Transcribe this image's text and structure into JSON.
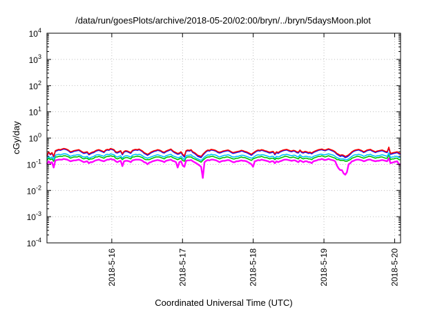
{
  "chart_data": {
    "type": "line",
    "title": "/data/run/goesPlots/archive/2018-05-20/02:00/bryn/../bryn/5daysMoon.plot",
    "xlabel": "Coordinated Universal Time (UTC)",
    "ylabel": "cGy/day",
    "yscale": "log",
    "ylim": [
      0.0001,
      10000
    ],
    "y_ticks": [
      {
        "base": "10",
        "exp": "-4"
      },
      {
        "base": "10",
        "exp": "-3"
      },
      {
        "base": "10",
        "exp": "-2"
      },
      {
        "base": "10",
        "exp": "-1"
      },
      {
        "base": "10",
        "exp": "0"
      },
      {
        "base": "10",
        "exp": "1"
      },
      {
        "base": "10",
        "exp": "2"
      },
      {
        "base": "10",
        "exp": "3"
      },
      {
        "base": "10",
        "exp": "4"
      }
    ],
    "xlim": [
      "2018-05-15T02:00",
      "2018-05-20T02:00"
    ],
    "x_ticks": [
      "2018-5-16",
      "2018-5-17",
      "2018-5-18",
      "2018-5-19",
      "2018-5-20"
    ],
    "grid": true,
    "legend": "none",
    "series": [
      {
        "color": "#ff0000",
        "values": [
          0.21,
          0.3,
          0.24,
          0.28,
          0.2,
          0.33,
          0.35,
          0.37,
          0.36,
          0.38,
          0.4,
          0.39,
          0.37,
          0.34,
          0.3,
          0.31,
          0.33,
          0.34,
          0.35,
          0.36,
          0.33,
          0.3,
          0.28,
          0.29,
          0.3,
          0.25,
          0.27,
          0.29,
          0.3,
          0.33,
          0.35,
          0.36,
          0.34,
          0.32,
          0.3,
          0.35,
          0.37,
          0.36,
          0.4,
          0.38,
          0.36,
          0.3,
          0.29,
          0.31,
          0.33,
          0.25,
          0.31,
          0.33,
          0.32,
          0.3,
          0.28,
          0.34,
          0.36,
          0.37,
          0.36,
          0.38,
          0.35,
          0.32,
          0.28,
          0.26,
          0.24,
          0.26,
          0.29,
          0.31,
          0.33,
          0.34,
          0.36,
          0.35,
          0.33,
          0.3,
          0.29,
          0.32,
          0.34,
          0.36,
          0.38,
          0.33,
          0.3,
          0.28,
          0.26,
          0.27,
          0.3,
          0.24,
          0.21,
          0.33,
          0.35,
          0.34,
          0.36,
          0.3,
          0.28,
          0.25,
          0.22,
          0.21,
          0.2,
          0.24,
          0.28,
          0.32,
          0.35,
          0.34,
          0.37,
          0.36,
          0.35,
          0.33,
          0.3,
          0.29,
          0.3,
          0.32,
          0.33,
          0.34,
          0.35,
          0.33,
          0.3,
          0.28,
          0.29,
          0.3,
          0.31,
          0.32,
          0.34,
          0.33,
          0.31,
          0.3,
          0.28,
          0.26,
          0.24,
          0.27,
          0.3,
          0.33,
          0.35,
          0.34,
          0.36,
          0.35,
          0.33,
          0.32,
          0.3,
          0.29,
          0.3,
          0.31,
          0.25,
          0.3,
          0.28,
          0.31,
          0.33,
          0.35,
          0.36,
          0.37,
          0.35,
          0.33,
          0.32,
          0.34,
          0.33,
          0.3,
          0.29,
          0.35,
          0.3,
          0.29,
          0.31,
          0.3,
          0.28,
          0.29,
          0.27,
          0.3,
          0.32,
          0.34,
          0.36,
          0.37,
          0.38,
          0.36,
          0.35,
          0.37,
          0.39,
          0.37,
          0.35,
          0.33,
          0.3,
          0.26,
          0.24,
          0.22,
          0.23,
          0.22,
          0.2,
          0.21,
          0.23,
          0.26,
          0.3,
          0.33,
          0.35,
          0.36,
          0.37,
          0.35,
          0.33,
          0.3,
          0.32,
          0.35,
          0.36,
          0.37,
          0.34,
          0.32,
          0.3,
          0.32,
          0.33,
          0.34,
          0.35,
          0.33,
          0.31,
          0.3,
          0.45,
          0.26,
          0.27,
          0.28,
          0.29,
          0.3,
          0.27,
          0.26
        ]
      },
      {
        "color": "#0000ff",
        "values": [
          0.2,
          0.28,
          0.23,
          0.26,
          0.19,
          0.31,
          0.33,
          0.35,
          0.34,
          0.36,
          0.38,
          0.37,
          0.35,
          0.32,
          0.28,
          0.29,
          0.31,
          0.32,
          0.33,
          0.34,
          0.31,
          0.28,
          0.26,
          0.27,
          0.28,
          0.23,
          0.25,
          0.27,
          0.28,
          0.31,
          0.33,
          0.34,
          0.32,
          0.3,
          0.28,
          0.33,
          0.35,
          0.34,
          0.38,
          0.36,
          0.34,
          0.28,
          0.27,
          0.29,
          0.31,
          0.23,
          0.29,
          0.31,
          0.3,
          0.28,
          0.26,
          0.32,
          0.34,
          0.35,
          0.34,
          0.36,
          0.33,
          0.3,
          0.26,
          0.24,
          0.22,
          0.24,
          0.27,
          0.29,
          0.31,
          0.32,
          0.34,
          0.33,
          0.31,
          0.28,
          0.27,
          0.3,
          0.32,
          0.34,
          0.36,
          0.31,
          0.28,
          0.26,
          0.24,
          0.25,
          0.28,
          0.22,
          0.19,
          0.31,
          0.33,
          0.32,
          0.34,
          0.28,
          0.26,
          0.23,
          0.2,
          0.19,
          0.18,
          0.22,
          0.26,
          0.3,
          0.33,
          0.32,
          0.35,
          0.34,
          0.33,
          0.31,
          0.28,
          0.27,
          0.28,
          0.3,
          0.31,
          0.32,
          0.33,
          0.31,
          0.28,
          0.26,
          0.27,
          0.28,
          0.29,
          0.3,
          0.32,
          0.31,
          0.29,
          0.28,
          0.26,
          0.24,
          0.22,
          0.25,
          0.28,
          0.31,
          0.33,
          0.32,
          0.34,
          0.33,
          0.31,
          0.3,
          0.28,
          0.27,
          0.28,
          0.29,
          0.23,
          0.28,
          0.26,
          0.29,
          0.31,
          0.33,
          0.34,
          0.35,
          0.33,
          0.31,
          0.3,
          0.32,
          0.31,
          0.28,
          0.27,
          0.33,
          0.28,
          0.27,
          0.29,
          0.28,
          0.26,
          0.27,
          0.25,
          0.28,
          0.3,
          0.32,
          0.34,
          0.35,
          0.36,
          0.34,
          0.33,
          0.35,
          0.37,
          0.35,
          0.33,
          0.31,
          0.28,
          0.24,
          0.22,
          0.2,
          0.21,
          0.2,
          0.18,
          0.19,
          0.21,
          0.24,
          0.28,
          0.31,
          0.33,
          0.34,
          0.35,
          0.33,
          0.31,
          0.28,
          0.3,
          0.33,
          0.34,
          0.35,
          0.32,
          0.3,
          0.28,
          0.3,
          0.31,
          0.32,
          0.33,
          0.31,
          0.29,
          0.28,
          0.42,
          0.24,
          0.25,
          0.26,
          0.27,
          0.28,
          0.25,
          0.24
        ]
      },
      {
        "color": "#00c0ff",
        "values": [
          0.16,
          0.2,
          0.17,
          0.19,
          0.15,
          0.22,
          0.23,
          0.24,
          0.23,
          0.24,
          0.25,
          0.25,
          0.24,
          0.22,
          0.2,
          0.21,
          0.22,
          0.22,
          0.23,
          0.23,
          0.22,
          0.2,
          0.19,
          0.19,
          0.2,
          0.17,
          0.18,
          0.19,
          0.2,
          0.22,
          0.23,
          0.23,
          0.22,
          0.21,
          0.2,
          0.23,
          0.24,
          0.23,
          0.25,
          0.24,
          0.23,
          0.2,
          0.19,
          0.2,
          0.21,
          0.17,
          0.2,
          0.21,
          0.21,
          0.2,
          0.19,
          0.22,
          0.23,
          0.24,
          0.23,
          0.24,
          0.23,
          0.21,
          0.19,
          0.18,
          0.17,
          0.18,
          0.19,
          0.2,
          0.21,
          0.22,
          0.23,
          0.22,
          0.21,
          0.2,
          0.19,
          0.21,
          0.22,
          0.23,
          0.24,
          0.21,
          0.2,
          0.19,
          0.18,
          0.18,
          0.2,
          0.17,
          0.15,
          0.21,
          0.22,
          0.22,
          0.23,
          0.2,
          0.19,
          0.17,
          0.16,
          0.15,
          0.14,
          0.16,
          0.19,
          0.21,
          0.23,
          0.22,
          0.24,
          0.23,
          0.23,
          0.22,
          0.2,
          0.19,
          0.2,
          0.21,
          0.22,
          0.22,
          0.23,
          0.22,
          0.2,
          0.19,
          0.19,
          0.2,
          0.2,
          0.21,
          0.22,
          0.22,
          0.21,
          0.2,
          0.19,
          0.18,
          0.17,
          0.18,
          0.2,
          0.22,
          0.23,
          0.22,
          0.23,
          0.23,
          0.22,
          0.21,
          0.2,
          0.19,
          0.2,
          0.2,
          0.17,
          0.2,
          0.19,
          0.2,
          0.22,
          0.23,
          0.23,
          0.24,
          0.23,
          0.22,
          0.21,
          0.22,
          0.22,
          0.2,
          0.19,
          0.23,
          0.2,
          0.19,
          0.2,
          0.2,
          0.19,
          0.19,
          0.18,
          0.2,
          0.21,
          0.22,
          0.23,
          0.24,
          0.24,
          0.23,
          0.23,
          0.24,
          0.25,
          0.24,
          0.23,
          0.22,
          0.2,
          0.18,
          0.17,
          0.16,
          0.16,
          0.16,
          0.15,
          0.15,
          0.16,
          0.18,
          0.2,
          0.22,
          0.23,
          0.23,
          0.24,
          0.23,
          0.22,
          0.2,
          0.21,
          0.23,
          0.23,
          0.24,
          0.22,
          0.21,
          0.2,
          0.21,
          0.21,
          0.22,
          0.23,
          0.22,
          0.21,
          0.2,
          0.27,
          0.18,
          0.19,
          0.19,
          0.2,
          0.2,
          0.18,
          0.18
        ]
      },
      {
        "color": "#00c000",
        "values": [
          0.14,
          0.17,
          0.15,
          0.16,
          0.13,
          0.19,
          0.19,
          0.2,
          0.2,
          0.2,
          0.21,
          0.21,
          0.2,
          0.19,
          0.17,
          0.18,
          0.19,
          0.19,
          0.19,
          0.2,
          0.19,
          0.17,
          0.16,
          0.17,
          0.17,
          0.15,
          0.16,
          0.16,
          0.17,
          0.19,
          0.19,
          0.2,
          0.19,
          0.18,
          0.17,
          0.19,
          0.2,
          0.2,
          0.21,
          0.2,
          0.2,
          0.17,
          0.16,
          0.17,
          0.18,
          0.15,
          0.17,
          0.18,
          0.18,
          0.17,
          0.16,
          0.19,
          0.19,
          0.2,
          0.2,
          0.2,
          0.19,
          0.18,
          0.16,
          0.15,
          0.15,
          0.15,
          0.16,
          0.17,
          0.18,
          0.19,
          0.19,
          0.19,
          0.18,
          0.17,
          0.16,
          0.18,
          0.19,
          0.19,
          0.2,
          0.18,
          0.17,
          0.16,
          0.15,
          0.16,
          0.17,
          0.14,
          0.13,
          0.18,
          0.19,
          0.19,
          0.19,
          0.17,
          0.16,
          0.15,
          0.14,
          0.13,
          0.12,
          0.14,
          0.16,
          0.18,
          0.19,
          0.19,
          0.2,
          0.2,
          0.19,
          0.18,
          0.17,
          0.16,
          0.17,
          0.18,
          0.18,
          0.19,
          0.19,
          0.18,
          0.17,
          0.16,
          0.16,
          0.17,
          0.17,
          0.18,
          0.19,
          0.18,
          0.18,
          0.17,
          0.16,
          0.15,
          0.14,
          0.16,
          0.17,
          0.18,
          0.19,
          0.19,
          0.2,
          0.19,
          0.18,
          0.18,
          0.17,
          0.16,
          0.17,
          0.17,
          0.15,
          0.17,
          0.16,
          0.17,
          0.18,
          0.19,
          0.2,
          0.2,
          0.19,
          0.18,
          0.18,
          0.19,
          0.18,
          0.17,
          0.16,
          0.19,
          0.17,
          0.16,
          0.17,
          0.17,
          0.16,
          0.16,
          0.15,
          0.17,
          0.18,
          0.19,
          0.2,
          0.2,
          0.21,
          0.2,
          0.19,
          0.2,
          0.21,
          0.2,
          0.19,
          0.18,
          0.17,
          0.15,
          0.15,
          0.14,
          0.14,
          0.14,
          0.13,
          0.13,
          0.14,
          0.15,
          0.17,
          0.18,
          0.19,
          0.2,
          0.2,
          0.19,
          0.18,
          0.17,
          0.18,
          0.19,
          0.2,
          0.2,
          0.19,
          0.18,
          0.17,
          0.18,
          0.18,
          0.19,
          0.19,
          0.18,
          0.17,
          0.17,
          0.23,
          0.15,
          0.16,
          0.16,
          0.17,
          0.17,
          0.15,
          0.15
        ]
      },
      {
        "color": "#ff00ff",
        "values": [
          0.1,
          0.13,
          0.11,
          0.12,
          0.075,
          0.14,
          0.145,
          0.15,
          0.15,
          0.15,
          0.16,
          0.155,
          0.15,
          0.14,
          0.13,
          0.135,
          0.14,
          0.14,
          0.145,
          0.15,
          0.14,
          0.13,
          0.12,
          0.125,
          0.13,
          0.11,
          0.12,
          0.12,
          0.13,
          0.14,
          0.145,
          0.15,
          0.14,
          0.135,
          0.13,
          0.14,
          0.15,
          0.15,
          0.16,
          0.15,
          0.15,
          0.13,
          0.12,
          0.13,
          0.135,
          0.085,
          0.13,
          0.135,
          0.135,
          0.13,
          0.12,
          0.14,
          0.145,
          0.15,
          0.15,
          0.15,
          0.145,
          0.135,
          0.12,
          0.115,
          0.1,
          0.115,
          0.12,
          0.13,
          0.135,
          0.14,
          0.145,
          0.14,
          0.135,
          0.13,
          0.12,
          0.135,
          0.14,
          0.145,
          0.15,
          0.135,
          0.13,
          0.12,
          0.075,
          0.12,
          0.13,
          0.09,
          0.08,
          0.135,
          0.14,
          0.14,
          0.145,
          0.13,
          0.12,
          0.11,
          0.1,
          0.09,
          0.08,
          0.03,
          0.12,
          0.135,
          0.145,
          0.14,
          0.15,
          0.15,
          0.145,
          0.14,
          0.13,
          0.12,
          0.13,
          0.135,
          0.135,
          0.14,
          0.145,
          0.14,
          0.13,
          0.12,
          0.12,
          0.13,
          0.13,
          0.135,
          0.14,
          0.135,
          0.135,
          0.13,
          0.12,
          0.11,
          0.1,
          0.08,
          0.13,
          0.135,
          0.145,
          0.14,
          0.15,
          0.145,
          0.14,
          0.135,
          0.13,
          0.12,
          0.13,
          0.13,
          0.11,
          0.13,
          0.12,
          0.13,
          0.135,
          0.145,
          0.15,
          0.15,
          0.145,
          0.14,
          0.135,
          0.14,
          0.14,
          0.13,
          0.12,
          0.14,
          0.13,
          0.12,
          0.13,
          0.13,
          0.12,
          0.12,
          0.11,
          0.13,
          0.135,
          0.14,
          0.15,
          0.15,
          0.16,
          0.15,
          0.145,
          0.15,
          0.16,
          0.15,
          0.145,
          0.14,
          0.13,
          0.09,
          0.07,
          0.06,
          0.06,
          0.045,
          0.04,
          0.05,
          0.1,
          0.11,
          0.13,
          0.135,
          0.145,
          0.15,
          0.15,
          0.145,
          0.14,
          0.13,
          0.135,
          0.145,
          0.15,
          0.15,
          0.14,
          0.135,
          0.13,
          0.135,
          0.135,
          0.14,
          0.145,
          0.14,
          0.135,
          0.13,
          0.17,
          0.11,
          0.115,
          0.12,
          0.125,
          0.13,
          0.1,
          0.1
        ]
      }
    ]
  }
}
